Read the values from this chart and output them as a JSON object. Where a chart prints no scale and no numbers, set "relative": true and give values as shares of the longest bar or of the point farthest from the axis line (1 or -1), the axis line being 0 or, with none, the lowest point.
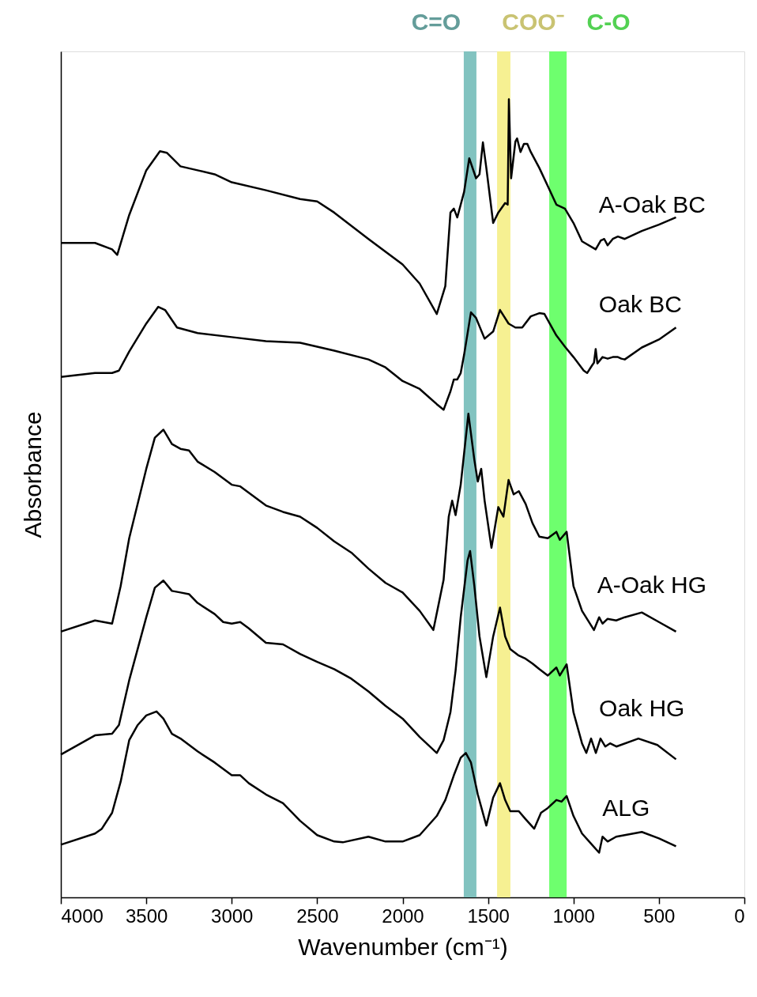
{
  "chart_data": {
    "type": "line",
    "relative": true,
    "xlabel": "Wavenumber (cm⁻¹)",
    "ylabel": "Absorbance",
    "xlim": [
      4000,
      0
    ],
    "xticks": [
      4000,
      3500,
      3000,
      2500,
      2000,
      1500,
      1000,
      500,
      0
    ],
    "tick_labels": "x",
    "grid": false,
    "marker": "none",
    "line_style": "solid",
    "bands": [
      {
        "axis": "x",
        "from": 1642,
        "to": 1568,
        "label": "C=O",
        "color": "#7bc0bd"
      },
      {
        "axis": "x",
        "from": 1447,
        "to": 1369,
        "label": "COO⁻",
        "color": "#f6ef8c"
      },
      {
        "axis": "x",
        "from": 1142,
        "to": 1040,
        "label": "C-O",
        "color": "#66ff66"
      }
    ],
    "series": [
      {
        "name": "A-Oak BC",
        "color": "#000000",
        "x": [
          4000,
          3800,
          3700,
          3670,
          3600,
          3500,
          3420,
          3380,
          3300,
          3200,
          3100,
          3000,
          2800,
          2600,
          2500,
          2400,
          2200,
          2000,
          1900,
          1800,
          1750,
          1720,
          1700,
          1680,
          1640,
          1610,
          1570,
          1550,
          1530,
          1510,
          1470,
          1440,
          1400,
          1385,
          1378,
          1365,
          1340,
          1330,
          1310,
          1290,
          1270,
          1250,
          1200,
          1150,
          1100,
          1050,
          1000,
          950,
          870,
          840,
          820,
          800,
          770,
          740,
          700,
          600,
          500,
          400
        ],
        "values": [
          0.82,
          0.82,
          0.812,
          0.805,
          0.855,
          0.911,
          0.935,
          0.933,
          0.916,
          0.911,
          0.906,
          0.896,
          0.886,
          0.875,
          0.872,
          0.858,
          0.825,
          0.793,
          0.769,
          0.731,
          0.766,
          0.858,
          0.863,
          0.852,
          0.884,
          0.926,
          0.901,
          0.906,
          0.946,
          0.914,
          0.845,
          0.858,
          0.87,
          0.868,
          1.0,
          0.901,
          0.947,
          0.951,
          0.934,
          0.944,
          0.944,
          0.934,
          0.914,
          0.891,
          0.868,
          0.863,
          0.845,
          0.822,
          0.812,
          0.823,
          0.825,
          0.817,
          0.825,
          0.828,
          0.825,
          0.835,
          0.843,
          0.852
        ]
      },
      {
        "name": "Oak BC",
        "color": "#000000",
        "x": [
          4000,
          3800,
          3700,
          3660,
          3600,
          3500,
          3430,
          3390,
          3320,
          3200,
          3000,
          2800,
          2600,
          2400,
          2200,
          2100,
          2000,
          1900,
          1800,
          1760,
          1720,
          1700,
          1680,
          1660,
          1640,
          1600,
          1570,
          1520,
          1470,
          1430,
          1380,
          1340,
          1300,
          1250,
          1200,
          1170,
          1100,
          1050,
          1000,
          940,
          920,
          890,
          880,
          870,
          860,
          830,
          800,
          770,
          740,
          720,
          700,
          600,
          500,
          400
        ],
        "values": [
          0.652,
          0.657,
          0.657,
          0.66,
          0.684,
          0.719,
          0.74,
          0.736,
          0.714,
          0.707,
          0.702,
          0.697,
          0.695,
          0.685,
          0.674,
          0.664,
          0.647,
          0.637,
          0.618,
          0.611,
          0.634,
          0.649,
          0.649,
          0.657,
          0.68,
          0.733,
          0.726,
          0.7,
          0.709,
          0.736,
          0.719,
          0.714,
          0.714,
          0.728,
          0.732,
          0.731,
          0.704,
          0.69,
          0.677,
          0.66,
          0.657,
          0.667,
          0.67,
          0.687,
          0.669,
          0.677,
          0.675,
          0.677,
          0.677,
          0.675,
          0.674,
          0.689,
          0.699,
          0.714
        ]
      },
      {
        "name": "A-Oak HG",
        "color": "#000000",
        "x": [
          4000,
          3800,
          3700,
          3650,
          3600,
          3500,
          3450,
          3400,
          3350,
          3300,
          3250,
          3200,
          3100,
          3000,
          2950,
          2900,
          2800,
          2700,
          2600,
          2500,
          2400,
          2300,
          2200,
          2100,
          2000,
          1900,
          1820,
          1760,
          1730,
          1710,
          1690,
          1660,
          1615,
          1580,
          1560,
          1540,
          1520,
          1480,
          1440,
          1410,
          1380,
          1350,
          1320,
          1280,
          1240,
          1200,
          1150,
          1100,
          1080,
          1040,
          1000,
          950,
          880,
          850,
          830,
          800,
          750,
          700,
          600,
          500,
          400
        ],
        "values": [
          0.333,
          0.347,
          0.343,
          0.39,
          0.45,
          0.537,
          0.576,
          0.586,
          0.568,
          0.562,
          0.56,
          0.546,
          0.533,
          0.517,
          0.515,
          0.507,
          0.491,
          0.483,
          0.477,
          0.463,
          0.446,
          0.432,
          0.412,
          0.394,
          0.382,
          0.359,
          0.335,
          0.398,
          0.477,
          0.497,
          0.479,
          0.517,
          0.606,
          0.548,
          0.521,
          0.537,
          0.497,
          0.438,
          0.489,
          0.477,
          0.523,
          0.505,
          0.509,
          0.493,
          0.469,
          0.452,
          0.45,
          0.458,
          0.448,
          0.458,
          0.39,
          0.359,
          0.335,
          0.351,
          0.343,
          0.349,
          0.347,
          0.351,
          0.357,
          0.345,
          0.333
        ]
      },
      {
        "name": "Oak HG",
        "color": "#000000",
        "x": [
          4000,
          3800,
          3700,
          3660,
          3600,
          3500,
          3450,
          3400,
          3350,
          3300,
          3250,
          3200,
          3100,
          3050,
          3000,
          2950,
          2900,
          2800,
          2700,
          2600,
          2500,
          2400,
          2300,
          2200,
          2100,
          2000,
          1900,
          1800,
          1760,
          1720,
          1690,
          1660,
          1620,
          1605,
          1580,
          1550,
          1510,
          1470,
          1430,
          1400,
          1370,
          1320,
          1280,
          1240,
          1200,
          1150,
          1100,
          1080,
          1040,
          1000,
          950,
          925,
          897,
          869,
          842,
          814,
          786,
          749,
          620,
          509,
          400
        ],
        "values": [
          0.179,
          0.203,
          0.205,
          0.216,
          0.272,
          0.351,
          0.388,
          0.397,
          0.384,
          0.382,
          0.38,
          0.369,
          0.355,
          0.345,
          0.343,
          0.345,
          0.337,
          0.319,
          0.317,
          0.305,
          0.295,
          0.286,
          0.274,
          0.258,
          0.24,
          0.224,
          0.201,
          0.181,
          0.197,
          0.232,
          0.284,
          0.351,
          0.422,
          0.434,
          0.39,
          0.327,
          0.276,
          0.327,
          0.363,
          0.327,
          0.311,
          0.303,
          0.299,
          0.293,
          0.286,
          0.278,
          0.288,
          0.278,
          0.292,
          0.232,
          0.193,
          0.181,
          0.199,
          0.181,
          0.199,
          0.189,
          0.193,
          0.189,
          0.199,
          0.191,
          0.173
        ]
      },
      {
        "name": "ALG",
        "color": "#000000",
        "x": [
          4000,
          3800,
          3760,
          3700,
          3650,
          3600,
          3550,
          3500,
          3440,
          3400,
          3350,
          3300,
          3200,
          3100,
          3000,
          2950,
          2900,
          2800,
          2700,
          2600,
          2500,
          2400,
          2350,
          2200,
          2100,
          2000,
          1900,
          1800,
          1750,
          1700,
          1660,
          1630,
          1600,
          1560,
          1510,
          1470,
          1430,
          1400,
          1370,
          1320,
          1280,
          1230,
          1190,
          1150,
          1100,
          1070,
          1040,
          1000,
          950,
          900,
          850,
          830,
          800,
          750,
          600,
          500,
          400
        ],
        "values": [
          0.066,
          0.08,
          0.086,
          0.106,
          0.145,
          0.197,
          0.216,
          0.228,
          0.233,
          0.224,
          0.205,
          0.199,
          0.183,
          0.169,
          0.153,
          0.153,
          0.143,
          0.129,
          0.118,
          0.096,
          0.078,
          0.07,
          0.069,
          0.076,
          0.07,
          0.07,
          0.078,
          0.102,
          0.122,
          0.153,
          0.175,
          0.181,
          0.169,
          0.129,
          0.09,
          0.125,
          0.143,
          0.122,
          0.108,
          0.108,
          0.098,
          0.086,
          0.106,
          0.112,
          0.122,
          0.12,
          0.127,
          0.102,
          0.08,
          0.068,
          0.056,
          0.076,
          0.07,
          0.076,
          0.082,
          0.074,
          0.064
        ]
      }
    ]
  }
}
